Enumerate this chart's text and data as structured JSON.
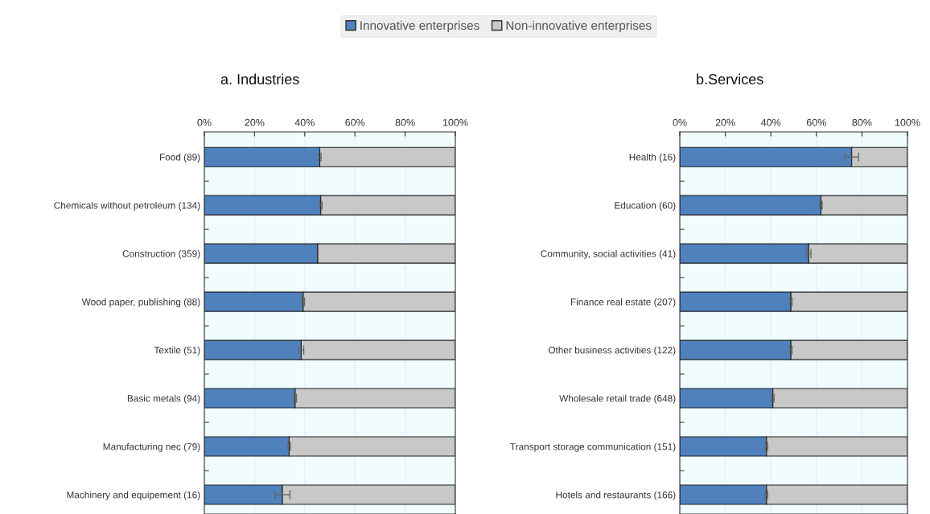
{
  "chart_data": [
    {
      "type": "bar",
      "orientation": "horizontal",
      "stacked": true,
      "title": "a. Industries",
      "legend": "top",
      "grid": "x",
      "categories": [
        "Food (89)",
        "Chemicals without petroleum (134)",
        "Construction (359)",
        "Wood paper, publishing (88)",
        "Textile (51)",
        "Basic metals (94)",
        "Manufacturing nec (79)",
        "Machinery and equipement (16)"
      ],
      "xlim": [
        0,
        100
      ],
      "xticks": [
        {
          "value": 0,
          "label": "0%"
        },
        {
          "value": 20,
          "label": "20%"
        },
        {
          "value": 40,
          "label": "40%"
        },
        {
          "value": 60,
          "label": "60%"
        },
        {
          "value": 80,
          "label": "80%"
        },
        {
          "value": 100,
          "label": "100%"
        }
      ],
      "series": [
        {
          "name": "Innovative enterprises",
          "color": "#4f81bd",
          "values": [
            46.0,
            46.4,
            45.2,
            39.4,
            38.6,
            36.2,
            33.8,
            31.1
          ],
          "errors": [
            0.5,
            0.5,
            null,
            0.5,
            1,
            0.5,
            0.5,
            3
          ]
        },
        {
          "name": "Non-innovative enterprises",
          "color": "#c8c8c8",
          "values": [
            54.0,
            53.6,
            54.8,
            60.6,
            61.4,
            63.8,
            66.2,
            68.9
          ]
        }
      ]
    },
    {
      "type": "bar",
      "orientation": "horizontal",
      "stacked": true,
      "title": "b.Services",
      "grid": "x",
      "categories": [
        "Health (16)",
        "Education (60)",
        "Community, social activities (41)",
        "Finance real estate (207)",
        "Other business activities (122)",
        "Wholesale retail trade (648)",
        "Transport storage communication (151)",
        "Hotels and restaurants (166)"
      ],
      "xlim": [
        0,
        100
      ],
      "xticks": [
        {
          "value": 0,
          "label": "0%"
        },
        {
          "value": 20,
          "label": "20%"
        },
        {
          "value": 40,
          "label": "40%"
        },
        {
          "value": 60,
          "label": "60%"
        },
        {
          "value": 80,
          "label": "80%"
        },
        {
          "value": 100,
          "label": "100%"
        }
      ],
      "series": [
        {
          "color": "#4f81bd",
          "values": [
            75.5,
            62.0,
            56.6,
            48.8,
            48.8,
            40.9,
            38.1,
            38.1
          ],
          "errors": [
            3,
            0.5,
            1,
            0.5,
            0.5,
            0.5,
            0.5,
            0.5
          ]
        },
        {
          "color": "#c8c8c8",
          "values": [
            24.5,
            38.0,
            43.4,
            51.2,
            51.2,
            59.1,
            61.9,
            61.9
          ]
        }
      ]
    }
  ]
}
